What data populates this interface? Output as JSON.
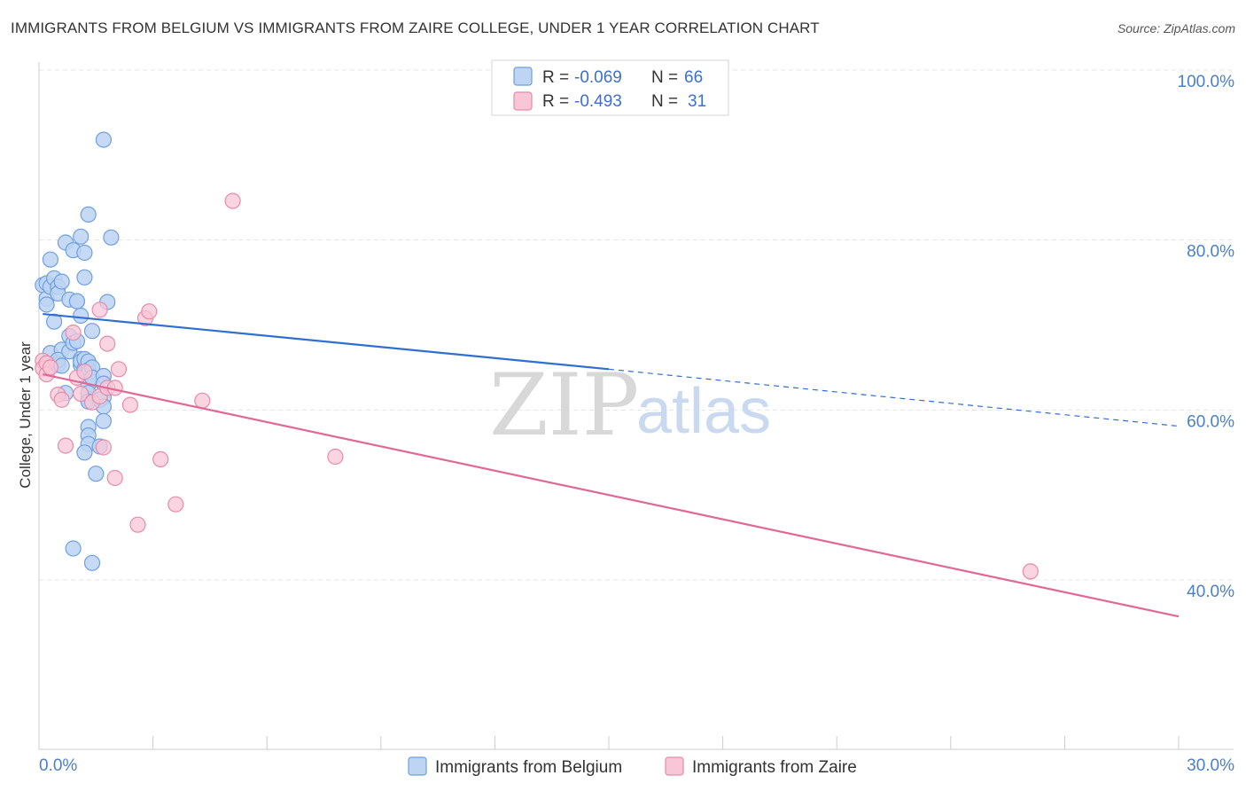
{
  "source": "Source: ZipAtlas.com",
  "colors": {
    "belgium_fill": "#bdd4f3",
    "belgium_stroke": "#6e9fe0",
    "belgium_line": "#2f6fd0",
    "zaire_fill": "#f8c6d6",
    "zaire_stroke": "#e68bab",
    "zaire_line": "#e06896",
    "axis_text": "#4a7fc9",
    "grid": "#e4e4e4"
  },
  "watermark": {
    "zip": "ZIP",
    "atlas": "atlas"
  },
  "stats": {
    "r_label": "R =",
    "n_label": "N =",
    "rows": [
      {
        "series": "belgium",
        "r": "-0.069",
        "n": "66"
      },
      {
        "series": "zaire",
        "r": "-0.493",
        "n": "31"
      }
    ]
  },
  "chart_data": {
    "type": "scatter",
    "title": "IMMIGRANTS FROM BELGIUM VS IMMIGRANTS FROM ZAIRE COLLEGE, UNDER 1 YEAR CORRELATION CHART",
    "xlabel": "",
    "ylabel": "College, Under 1 year",
    "xlim": [
      0,
      30
    ],
    "ylim": [
      22,
      103
    ],
    "x_tick_labels": [
      {
        "value": 0,
        "label": "0.0%"
      },
      {
        "value": 30,
        "label": "30.0%"
      }
    ],
    "y_tick_labels": [
      {
        "value": 100,
        "label": "100.0%"
      },
      {
        "value": 80,
        "label": "80.0%"
      },
      {
        "value": 60,
        "label": "60.0%"
      },
      {
        "value": 40,
        "label": "40.0%"
      }
    ],
    "x_minor_ticks": [
      3,
      6,
      9,
      12,
      15,
      18,
      21,
      24,
      27,
      30
    ],
    "grid": true,
    "legend_position": "bottom-center",
    "series": [
      {
        "name": "Immigrants from Belgium",
        "key": "belgium",
        "trend": {
          "x_start": 0.1,
          "y_start": 71.3,
          "x_solid_end": 15.0,
          "y_solid_end": 64.8,
          "x_end": 30.0,
          "y_end": 58.1
        },
        "points": [
          [
            0.1,
            74.7
          ],
          [
            0.2,
            74.9
          ],
          [
            0.2,
            73.1
          ],
          [
            0.2,
            72.4
          ],
          [
            0.3,
            77.7
          ],
          [
            0.3,
            74.5
          ],
          [
            0.3,
            66.7
          ],
          [
            0.4,
            75.5
          ],
          [
            0.4,
            70.4
          ],
          [
            0.5,
            74.5
          ],
          [
            0.5,
            73.7
          ],
          [
            0.5,
            65.5
          ],
          [
            0.6,
            75.1
          ],
          [
            0.6,
            67.1
          ],
          [
            0.5,
            65.3
          ],
          [
            0.5,
            65.9
          ],
          [
            0.6,
            65.2
          ],
          [
            0.7,
            79.7
          ],
          [
            0.7,
            62.0
          ],
          [
            0.8,
            73.0
          ],
          [
            0.8,
            68.7
          ],
          [
            0.8,
            66.9
          ],
          [
            0.9,
            78.8
          ],
          [
            0.9,
            43.7
          ],
          [
            1.0,
            72.8
          ],
          [
            0.9,
            67.9
          ],
          [
            1.1,
            71.1
          ],
          [
            1.0,
            72.8
          ],
          [
            1.0,
            68.1
          ],
          [
            1.1,
            80.4
          ],
          [
            1.1,
            65.3
          ],
          [
            1.1,
            66.0
          ],
          [
            1.1,
            65.7
          ],
          [
            1.2,
            78.5
          ],
          [
            1.2,
            75.6
          ],
          [
            1.3,
            83.0
          ],
          [
            1.3,
            65.4
          ],
          [
            1.3,
            61.3
          ],
          [
            1.4,
            69.3
          ],
          [
            1.2,
            64.8
          ],
          [
            1.3,
            65.1
          ],
          [
            1.2,
            66.0
          ],
          [
            1.3,
            65.7
          ],
          [
            1.3,
            64.7
          ],
          [
            1.3,
            64.3
          ],
          [
            1.3,
            63.0
          ],
          [
            1.3,
            62.0
          ],
          [
            1.3,
            61.0
          ],
          [
            1.3,
            58.0
          ],
          [
            1.3,
            57.0
          ],
          [
            1.3,
            56.0
          ],
          [
            1.2,
            55.0
          ],
          [
            1.7,
            91.8
          ],
          [
            1.6,
            55.7
          ],
          [
            1.5,
            52.5
          ],
          [
            1.4,
            65.0
          ],
          [
            1.4,
            63.8
          ],
          [
            1.4,
            42.0
          ],
          [
            1.7,
            61.5
          ],
          [
            1.7,
            64.0
          ],
          [
            1.9,
            80.3
          ],
          [
            1.8,
            72.7
          ],
          [
            1.6,
            61.2
          ],
          [
            1.7,
            60.4
          ],
          [
            1.7,
            58.7
          ],
          [
            1.7,
            63.1
          ]
        ]
      },
      {
        "name": "Immigrants from Zaire",
        "key": "zaire",
        "trend": {
          "x_start": 0.1,
          "y_start": 64.2,
          "x_end": 30.0,
          "y_end": 35.7
        },
        "points": [
          [
            0.1,
            65.8
          ],
          [
            0.1,
            64.9
          ],
          [
            0.2,
            65.5
          ],
          [
            0.2,
            64.2
          ],
          [
            0.3,
            65.0
          ],
          [
            0.5,
            61.8
          ],
          [
            0.6,
            61.2
          ],
          [
            0.7,
            55.8
          ],
          [
            0.9,
            69.1
          ],
          [
            1.0,
            63.8
          ],
          [
            1.1,
            61.9
          ],
          [
            1.2,
            64.5
          ],
          [
            1.4,
            60.9
          ],
          [
            1.6,
            61.6
          ],
          [
            1.6,
            71.8
          ],
          [
            1.7,
            55.6
          ],
          [
            1.8,
            67.8
          ],
          [
            1.8,
            62.6
          ],
          [
            2.0,
            62.6
          ],
          [
            2.0,
            52.0
          ],
          [
            2.1,
            64.8
          ],
          [
            2.4,
            60.6
          ],
          [
            2.6,
            46.5
          ],
          [
            2.8,
            70.8
          ],
          [
            2.9,
            71.6
          ],
          [
            3.2,
            54.2
          ],
          [
            3.6,
            48.9
          ],
          [
            4.3,
            61.1
          ],
          [
            5.1,
            84.6
          ],
          [
            7.8,
            54.5
          ],
          [
            26.1,
            41.0
          ]
        ]
      }
    ]
  }
}
